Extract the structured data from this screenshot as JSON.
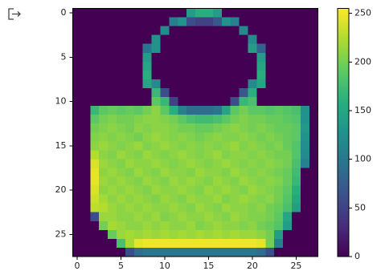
{
  "chart_data": {
    "type": "heatmap",
    "colormap": "viridis",
    "xlim": [
      -0.5,
      27.5
    ],
    "ylim": [
      27.5,
      -0.5
    ],
    "xticks": [
      0,
      5,
      10,
      15,
      20,
      25
    ],
    "yticks": [
      0,
      5,
      10,
      15,
      20,
      25
    ],
    "clim": [
      0,
      255
    ],
    "cticks": [
      0,
      50,
      100,
      150,
      200,
      250
    ],
    "z": [
      [
        0,
        0,
        0,
        0,
        0,
        0,
        0,
        0,
        0,
        0,
        0,
        0,
        0,
        140,
        160,
        160,
        140,
        0,
        0,
        0,
        0,
        0,
        0,
        0,
        0,
        0,
        0,
        0
      ],
      [
        0,
        0,
        0,
        0,
        0,
        0,
        0,
        0,
        0,
        0,
        0,
        110,
        130,
        60,
        50,
        50,
        70,
        130,
        110,
        0,
        0,
        0,
        0,
        0,
        0,
        0,
        0,
        0
      ],
      [
        0,
        0,
        0,
        0,
        0,
        0,
        0,
        0,
        0,
        0,
        120,
        0,
        0,
        0,
        0,
        0,
        0,
        0,
        0,
        120,
        0,
        0,
        0,
        0,
        0,
        0,
        0,
        0
      ],
      [
        0,
        0,
        0,
        0,
        0,
        0,
        0,
        0,
        0,
        130,
        0,
        0,
        0,
        0,
        0,
        0,
        0,
        0,
        0,
        0,
        120,
        0,
        0,
        0,
        0,
        0,
        0,
        0
      ],
      [
        0,
        0,
        0,
        0,
        0,
        0,
        0,
        0,
        100,
        130,
        0,
        0,
        0,
        0,
        0,
        0,
        0,
        0,
        0,
        0,
        140,
        80,
        0,
        0,
        0,
        0,
        0,
        0
      ],
      [
        0,
        0,
        0,
        0,
        0,
        0,
        0,
        0,
        140,
        0,
        0,
        0,
        0,
        0,
        0,
        0,
        0,
        0,
        0,
        0,
        0,
        140,
        0,
        0,
        0,
        0,
        0,
        0
      ],
      [
        0,
        0,
        0,
        0,
        0,
        0,
        0,
        0,
        150,
        0,
        0,
        0,
        0,
        0,
        0,
        0,
        0,
        0,
        0,
        0,
        0,
        150,
        0,
        0,
        0,
        0,
        0,
        0
      ],
      [
        0,
        0,
        0,
        0,
        0,
        0,
        0,
        0,
        160,
        0,
        0,
        0,
        0,
        0,
        0,
        0,
        0,
        0,
        0,
        0,
        0,
        160,
        0,
        0,
        0,
        0,
        0,
        0
      ],
      [
        0,
        0,
        0,
        0,
        0,
        0,
        0,
        0,
        150,
        120,
        0,
        0,
        0,
        0,
        0,
        0,
        0,
        0,
        0,
        0,
        120,
        150,
        0,
        0,
        0,
        0,
        0,
        0
      ],
      [
        0,
        0,
        0,
        0,
        0,
        0,
        0,
        0,
        0,
        170,
        60,
        0,
        0,
        0,
        0,
        0,
        0,
        0,
        0,
        70,
        160,
        0,
        0,
        0,
        0,
        0,
        0,
        0
      ],
      [
        0,
        0,
        0,
        0,
        0,
        0,
        0,
        0,
        0,
        190,
        170,
        50,
        0,
        0,
        0,
        0,
        0,
        0,
        60,
        170,
        180,
        0,
        0,
        0,
        0,
        0,
        0,
        0
      ],
      [
        0,
        0,
        170,
        190,
        195,
        190,
        195,
        190,
        200,
        210,
        190,
        160,
        110,
        90,
        90,
        90,
        100,
        150,
        190,
        200,
        190,
        190,
        185,
        190,
        185,
        180,
        130,
        0
      ],
      [
        0,
        0,
        190,
        200,
        205,
        200,
        200,
        205,
        210,
        210,
        205,
        200,
        190,
        180,
        175,
        175,
        180,
        190,
        200,
        205,
        200,
        200,
        195,
        195,
        190,
        185,
        130,
        0
      ],
      [
        0,
        0,
        200,
        205,
        210,
        205,
        200,
        210,
        205,
        210,
        210,
        205,
        200,
        200,
        195,
        195,
        200,
        205,
        210,
        205,
        200,
        205,
        200,
        195,
        195,
        190,
        135,
        0
      ],
      [
        0,
        0,
        205,
        210,
        205,
        210,
        205,
        200,
        210,
        215,
        210,
        205,
        210,
        205,
        200,
        205,
        210,
        205,
        205,
        210,
        205,
        200,
        205,
        200,
        195,
        190,
        130,
        0
      ],
      [
        0,
        0,
        210,
        215,
        210,
        205,
        210,
        215,
        205,
        210,
        215,
        210,
        205,
        210,
        205,
        210,
        205,
        210,
        215,
        205,
        210,
        205,
        200,
        205,
        195,
        185,
        125,
        0
      ],
      [
        0,
        0,
        225,
        210,
        205,
        215,
        210,
        205,
        215,
        210,
        205,
        210,
        215,
        210,
        205,
        210,
        215,
        205,
        210,
        210,
        205,
        210,
        205,
        200,
        200,
        185,
        120,
        0
      ],
      [
        0,
        0,
        240,
        215,
        210,
        205,
        215,
        210,
        210,
        215,
        210,
        205,
        210,
        215,
        210,
        205,
        210,
        215,
        210,
        205,
        210,
        205,
        210,
        205,
        200,
        180,
        110,
        0
      ],
      [
        0,
        0,
        245,
        210,
        215,
        210,
        205,
        215,
        210,
        205,
        215,
        210,
        210,
        205,
        215,
        210,
        210,
        205,
        215,
        210,
        205,
        210,
        205,
        200,
        195,
        175,
        0,
        0
      ],
      [
        0,
        0,
        245,
        215,
        210,
        215,
        210,
        205,
        215,
        210,
        205,
        215,
        210,
        215,
        210,
        205,
        215,
        210,
        205,
        215,
        210,
        205,
        210,
        205,
        195,
        170,
        0,
        0
      ],
      [
        0,
        0,
        240,
        210,
        215,
        210,
        215,
        210,
        205,
        215,
        210,
        210,
        215,
        210,
        205,
        215,
        210,
        215,
        210,
        205,
        215,
        210,
        205,
        200,
        190,
        160,
        0,
        0
      ],
      [
        0,
        0,
        235,
        220,
        210,
        215,
        210,
        215,
        210,
        205,
        215,
        210,
        205,
        215,
        210,
        210,
        215,
        205,
        210,
        215,
        210,
        205,
        210,
        200,
        185,
        150,
        0,
        0
      ],
      [
        0,
        0,
        230,
        225,
        215,
        210,
        215,
        210,
        215,
        210,
        210,
        215,
        210,
        205,
        215,
        210,
        205,
        215,
        210,
        210,
        205,
        210,
        200,
        195,
        180,
        140,
        0,
        0
      ],
      [
        0,
        0,
        60,
        215,
        215,
        210,
        210,
        215,
        210,
        215,
        205,
        210,
        215,
        210,
        210,
        215,
        210,
        205,
        215,
        210,
        205,
        205,
        200,
        190,
        150,
        0,
        0,
        0
      ],
      [
        0,
        0,
        0,
        200,
        220,
        215,
        210,
        210,
        215,
        210,
        215,
        210,
        210,
        215,
        205,
        210,
        215,
        210,
        210,
        205,
        210,
        200,
        195,
        185,
        140,
        0,
        0,
        0
      ],
      [
        0,
        0,
        0,
        0,
        195,
        215,
        220,
        215,
        220,
        215,
        220,
        215,
        220,
        215,
        220,
        215,
        220,
        215,
        220,
        215,
        215,
        210,
        200,
        140,
        0,
        0,
        0,
        0
      ],
      [
        0,
        0,
        0,
        0,
        0,
        180,
        220,
        245,
        250,
        250,
        250,
        250,
        250,
        250,
        250,
        250,
        250,
        250,
        250,
        250,
        250,
        245,
        200,
        110,
        0,
        0,
        0,
        0
      ],
      [
        0,
        0,
        0,
        0,
        0,
        0,
        60,
        90,
        100,
        100,
        100,
        100,
        100,
        100,
        100,
        100,
        100,
        100,
        100,
        100,
        100,
        90,
        60,
        0,
        0,
        0,
        0,
        0
      ]
    ]
  }
}
